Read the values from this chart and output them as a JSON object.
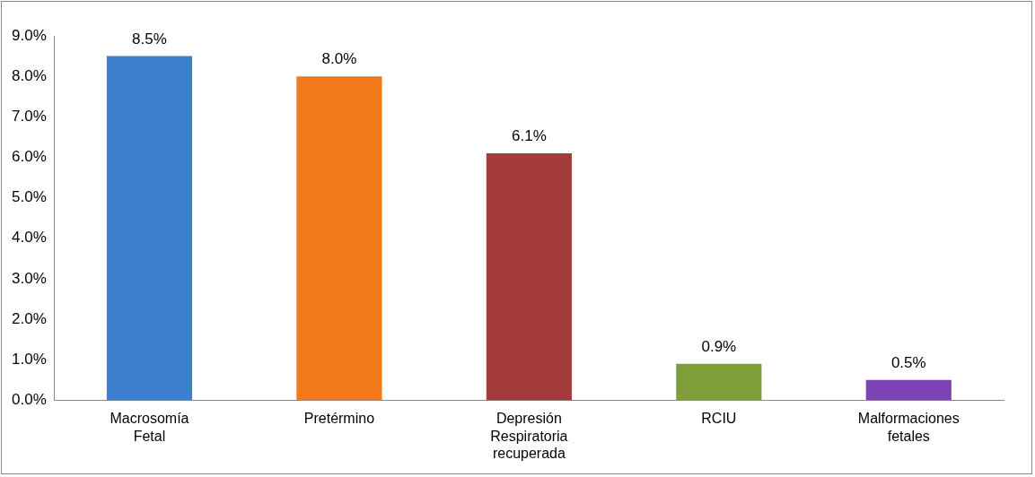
{
  "chart_data": {
    "type": "bar",
    "categories": [
      "Macrosomía Fetal",
      "Pretérmino",
      "Depresión Respiratoria recuperada",
      "RCIU",
      "Malformaciones fetales"
    ],
    "values": [
      8.5,
      8.0,
      6.1,
      0.9,
      0.5
    ],
    "colors": [
      "#3d7fcc",
      "#f07a1a",
      "#a33b3b",
      "#7e9e3a",
      "#7b43b3"
    ],
    "value_labels": [
      "8.5%",
      "8.0%",
      "6.1%",
      "0.9%",
      "0.5%"
    ],
    "ylim": [
      0,
      9
    ],
    "yticks": [
      {
        "value": 0,
        "label": "0.0%"
      },
      {
        "value": 1,
        "label": "1.0%"
      },
      {
        "value": 2,
        "label": "2.0%"
      },
      {
        "value": 3,
        "label": "3.0%"
      },
      {
        "value": 4,
        "label": "4.0%"
      },
      {
        "value": 5,
        "label": "5.0%"
      },
      {
        "value": 6,
        "label": "6.0%"
      },
      {
        "value": 7,
        "label": "7.0%"
      },
      {
        "value": 8,
        "label": "8.0%"
      },
      {
        "value": 9,
        "label": "9.0%"
      }
    ],
    "grid": false,
    "legend": false
  }
}
